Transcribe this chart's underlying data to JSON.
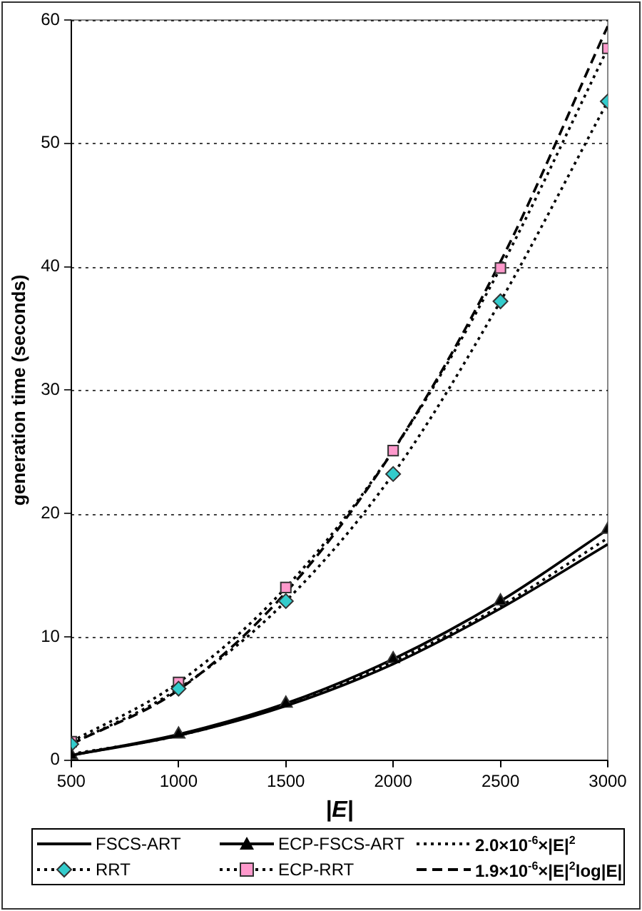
{
  "chart_data": {
    "type": "line",
    "xlabel": "|E|",
    "ylabel": "generation time (seconds)",
    "x": [
      500,
      1000,
      1500,
      2000,
      2500,
      3000
    ],
    "xlim": [
      500,
      3000
    ],
    "xticks": [
      500,
      1000,
      1500,
      2000,
      2500,
      3000
    ],
    "ylim": [
      0,
      60
    ],
    "yticks": [
      0,
      10,
      20,
      30,
      40,
      50,
      60
    ],
    "grid": "y",
    "legend": "bottom",
    "series": [
      {
        "name": "FSCS-ART",
        "color": "#000000",
        "marker": "none",
        "line_style": "solid",
        "values": [
          0.4,
          2.0,
          4.4,
          7.8,
          12.3,
          17.5
        ]
      },
      {
        "name": "ECP-FSCS-ART",
        "color": "#000000",
        "marker": "triangle",
        "line_style": "solid",
        "values": [
          0.4,
          2.1,
          4.6,
          8.2,
          12.9,
          18.7
        ]
      },
      {
        "name": "2.0×10$^{-6}$×|E|$^{2}$",
        "color": "#000000",
        "marker": "none",
        "line_style": "dotted",
        "values": [
          0.5,
          2.0,
          4.5,
          8.0,
          12.5,
          18.0
        ]
      },
      {
        "name": "RRT",
        "color": "#33cccc",
        "marker": "diamond",
        "line_style": "dotted",
        "values": [
          1.3,
          5.8,
          12.9,
          23.2,
          37.2,
          53.4
        ]
      },
      {
        "name": "ECP-RRT",
        "color": "#ff99cc",
        "marker": "square",
        "line_style": "dotted",
        "values": [
          1.5,
          6.3,
          14.0,
          25.1,
          39.9,
          57.7
        ]
      },
      {
        "name": "1.9×10$^{-6}$×|E|$^{2}$log|E|",
        "color": "#000000",
        "marker": "none",
        "line_style": "dashed",
        "values": [
          1.3,
          5.7,
          13.6,
          25.1,
          40.4,
          59.5
        ]
      }
    ]
  }
}
